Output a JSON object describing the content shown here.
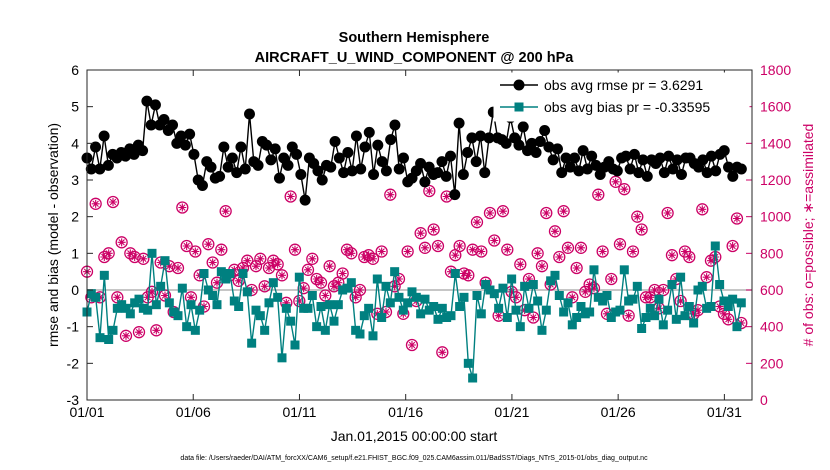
{
  "chart_data": {
    "type": "line",
    "title": "Southern Hemisphere",
    "subtitle": "AIRCRAFT_U_WIND_COMPONENT @ 200 hPa",
    "xlabel": "Jan.01,2015 00:00:00 start",
    "ylabel": "rmse and bias (model - observation)",
    "y2label": "# of obs: o=possible; ∗=assimilated",
    "footer": "data file: /Users/raeder/DAI/ATM_forcXX/CAM6_setup/f.e21.FHIST_BGC.f09_025.CAM6assim.011/BadSST/Diags_NTrS_2015-01/obs_diag_output.nc",
    "xlim": [
      0,
      31.3
    ],
    "ylim": [
      -3,
      6
    ],
    "y2lim": [
      0,
      1800
    ],
    "x_ticks": [
      0,
      5,
      10,
      15,
      20,
      25,
      30
    ],
    "x_tick_labels": [
      "01/01",
      "01/06",
      "01/11",
      "01/16",
      "01/21",
      "01/26",
      "01/31"
    ],
    "y_ticks": [
      -3,
      -2,
      -1,
      0,
      1,
      2,
      3,
      4,
      5,
      6
    ],
    "y_tick_labels": [
      "-3",
      "-2",
      "-1",
      "0",
      "1",
      "2",
      "3",
      "4",
      "5",
      "6"
    ],
    "y2_ticks": [
      0,
      200,
      400,
      600,
      800,
      1000,
      1200,
      1400,
      1600,
      1800
    ],
    "y2_tick_labels": [
      "0",
      "200",
      "400",
      "600",
      "800",
      "1000",
      "1200",
      "1400",
      "1600",
      "1800"
    ],
    "legend": {
      "placement": "top-right",
      "entries": [
        "obs avg rmse pr = 3.6291",
        "obs avg bias pr = -0.33595"
      ]
    },
    "colors": {
      "rmse": "#000000",
      "bias": "#008080",
      "obs": "#cc0066",
      "zero_line": "#b4b4b4"
    },
    "series": [
      {
        "name": "obs avg rmse pr = 3.6291",
        "axis": "left",
        "marker": "circle",
        "values": [
          3.6,
          3.3,
          3.9,
          3.3,
          4.2,
          3.4,
          3.7,
          3.6,
          3.75,
          3.65,
          3.85,
          3.7,
          3.95,
          3.8,
          5.15,
          4.5,
          5.05,
          4.5,
          4.65,
          4.35,
          4.5,
          4.0,
          4.2,
          3.95,
          4.25,
          3.7,
          3.0,
          2.85,
          3.5,
          3.35,
          3.05,
          3.1,
          3.9,
          3.35,
          3.6,
          3.2,
          3.9,
          3.3,
          4.8,
          3.5,
          3.4,
          4.05,
          3.95,
          3.55,
          3.85,
          3.05,
          3.6,
          3.4,
          3.9,
          3.7,
          3.15,
          2.45,
          3.6,
          3.45,
          3.25,
          3.0,
          3.4,
          3.35,
          4.05,
          3.6,
          3.2,
          3.75,
          3.25,
          4.2,
          3.3,
          3.9,
          4.3,
          3.15,
          3.95,
          3.5,
          3.25,
          4.1,
          4.5,
          3.3,
          3.6,
          2.95,
          3.05,
          3.25,
          3.45,
          2.95,
          3.35,
          3.15,
          3.2,
          3.5,
          3.1,
          3.65,
          2.6,
          4.55,
          3.15,
          3.75,
          4.15,
          3.5,
          4.2,
          3.2,
          4.15,
          4.85,
          4.15,
          4.1,
          4.0,
          4.7,
          4.15,
          3.95,
          4.45,
          3.8,
          4.0,
          3.75,
          4.05,
          4.35,
          3.9,
          3.55,
          3.85,
          3.2,
          3.6,
          3.35,
          3.6,
          3.25,
          3.8,
          3.3,
          3.65,
          3.4,
          3.15,
          3.35,
          3.5,
          3.3,
          3.25,
          3.6,
          3.65,
          3.3,
          3.7,
          3.2,
          3.55,
          3.1,
          3.55,
          3.45,
          3.6,
          3.2,
          3.65,
          3.3,
          3.55,
          3.15,
          3.6,
          3.6,
          3.45,
          3.35,
          3.55,
          3.2,
          3.65,
          3.25,
          3.7,
          3.8,
          3.35,
          3.1,
          3.35,
          3.3
        ]
      },
      {
        "name": "obs avg bias pr = -0.33595",
        "axis": "left",
        "marker": "square",
        "values": [
          -0.6,
          -0.1,
          -0.2,
          -1.3,
          0.4,
          -1.35,
          -1.1,
          -0.5,
          -0.4,
          -0.5,
          -0.65,
          -0.35,
          -0.25,
          -0.5,
          -0.55,
          1.0,
          -0.4,
          0.1,
          0.8,
          -0.35,
          -0.6,
          -0.7,
          0.05,
          -1.0,
          -0.4,
          -1.1,
          -0.55,
          0.45,
          0.0,
          -0.15,
          -0.4,
          0.5,
          0.3,
          0.45,
          -0.3,
          -0.45,
          0.45,
          -0.05,
          -1.45,
          -0.55,
          -0.7,
          -1.1,
          -0.35,
          0.2,
          -0.2,
          -1.85,
          -0.5,
          -0.85,
          -1.5,
          0.35,
          -0.5,
          -0.5,
          -0.15,
          -1.0,
          -0.45,
          -1.1,
          -0.4,
          -0.85,
          -0.4,
          0.0,
          0.05,
          0.2,
          -1.1,
          -1.2,
          -0.7,
          -0.5,
          -1.25,
          0.3,
          -0.75,
          0.1,
          -0.35,
          0.5,
          -0.2,
          -0.55,
          -0.35,
          -0.05,
          -0.2,
          -0.65,
          -0.25,
          -0.55,
          -0.45,
          -0.8,
          -0.5,
          -0.75,
          -0.7,
          0.45,
          -0.45,
          -0.2,
          -2.0,
          -2.4,
          -0.15,
          -0.65,
          0.15,
          0.0,
          -0.1,
          -0.5,
          0.05,
          -0.75,
          0.3,
          -0.55,
          -1.0,
          0.1,
          -0.5,
          0.15,
          -0.3,
          -1.1,
          -0.55,
          0.25,
          0.4,
          -0.15,
          -0.6,
          -0.35,
          -0.95,
          -0.75,
          -0.45,
          -0.65,
          -0.6,
          0.55,
          -0.2,
          -0.3,
          -0.15,
          -0.75,
          -0.6,
          -0.55,
          0.55,
          -0.3,
          -0.25,
          0.1,
          -1.05,
          -0.75,
          -0.5,
          -0.7,
          -0.25,
          -0.95,
          -0.55,
          0.15,
          -0.8,
          0.35,
          -0.7,
          -0.45,
          -0.9,
          0.0,
          0.1,
          -0.5,
          -0.45,
          1.2,
          0.15,
          -0.3,
          -0.45,
          -0.25,
          -1.0,
          -0.35
        ]
      },
      {
        "name": "obs possible",
        "axis": "right",
        "marker": "circle-open",
        "values": [
          700,
          560,
          1070,
          560,
          780,
          800,
          1080,
          560,
          860,
          350,
          800,
          780,
          370,
          770,
          560,
          590,
          380,
          750,
          570,
          730,
          480,
          720,
          1050,
          840,
          560,
          810,
          680,
          510,
          850,
          750,
          640,
          820,
          1030,
          680,
          710,
          650,
          720,
          760,
          600,
          730,
          770,
          620,
          720,
          760,
          740,
          680,
          530,
          1110,
          820,
          540,
          610,
          710,
          770,
          660,
          640,
          570,
          730,
          620,
          640,
          690,
          820,
          800,
          560,
          600,
          780,
          790,
          770,
          470,
          810,
          480,
          1120,
          620,
          660,
          470,
          810,
          300,
          540,
          910,
          830,
          1140,
          930,
          840,
          260,
          1110,
          700,
          790,
          840,
          690,
          680,
          820,
          970,
          810,
          640,
          1020,
          870,
          460,
          1030,
          820,
          590,
          560,
          740,
          490,
          660,
          450,
          800,
          730,
          1020,
          630,
          920,
          780,
          1030,
          830,
          560,
          720,
          830,
          590,
          630,
          610,
          1120,
          810,
          470,
          660,
          1190,
          850,
          1150,
          460,
          810,
          1000,
          930,
          560,
          560,
          600,
          500,
          600,
          1020,
          790,
          660,
          540,
          810,
          780,
          470,
          490,
          1040,
          670,
          760,
          780,
          510,
          470,
          440,
          840,
          990,
          420
        ]
      },
      {
        "name": "obs assimilated",
        "axis": "right",
        "marker": "asterisk",
        "values": [
          700,
          560,
          1070,
          560,
          780,
          800,
          1080,
          560,
          860,
          350,
          800,
          780,
          370,
          770,
          560,
          590,
          380,
          750,
          570,
          730,
          480,
          720,
          1050,
          840,
          560,
          810,
          680,
          510,
          850,
          750,
          640,
          820,
          1030,
          680,
          710,
          650,
          720,
          760,
          600,
          730,
          770,
          620,
          720,
          760,
          740,
          680,
          530,
          1110,
          820,
          540,
          610,
          710,
          770,
          660,
          640,
          570,
          730,
          620,
          640,
          690,
          820,
          800,
          560,
          600,
          780,
          790,
          770,
          470,
          810,
          480,
          1120,
          620,
          660,
          470,
          810,
          300,
          540,
          910,
          830,
          1140,
          930,
          840,
          260,
          1110,
          700,
          790,
          840,
          690,
          680,
          820,
          970,
          810,
          640,
          1020,
          870,
          460,
          1030,
          820,
          590,
          560,
          740,
          490,
          660,
          450,
          800,
          730,
          1020,
          630,
          920,
          780,
          1030,
          830,
          560,
          720,
          830,
          590,
          630,
          610,
          1120,
          810,
          470,
          660,
          1190,
          850,
          1150,
          460,
          810,
          1000,
          930,
          560,
          560,
          600,
          500,
          600,
          1020,
          790,
          660,
          540,
          810,
          780,
          470,
          490,
          1040,
          670,
          760,
          780,
          510,
          470,
          440,
          840,
          990,
          420
        ]
      }
    ]
  }
}
